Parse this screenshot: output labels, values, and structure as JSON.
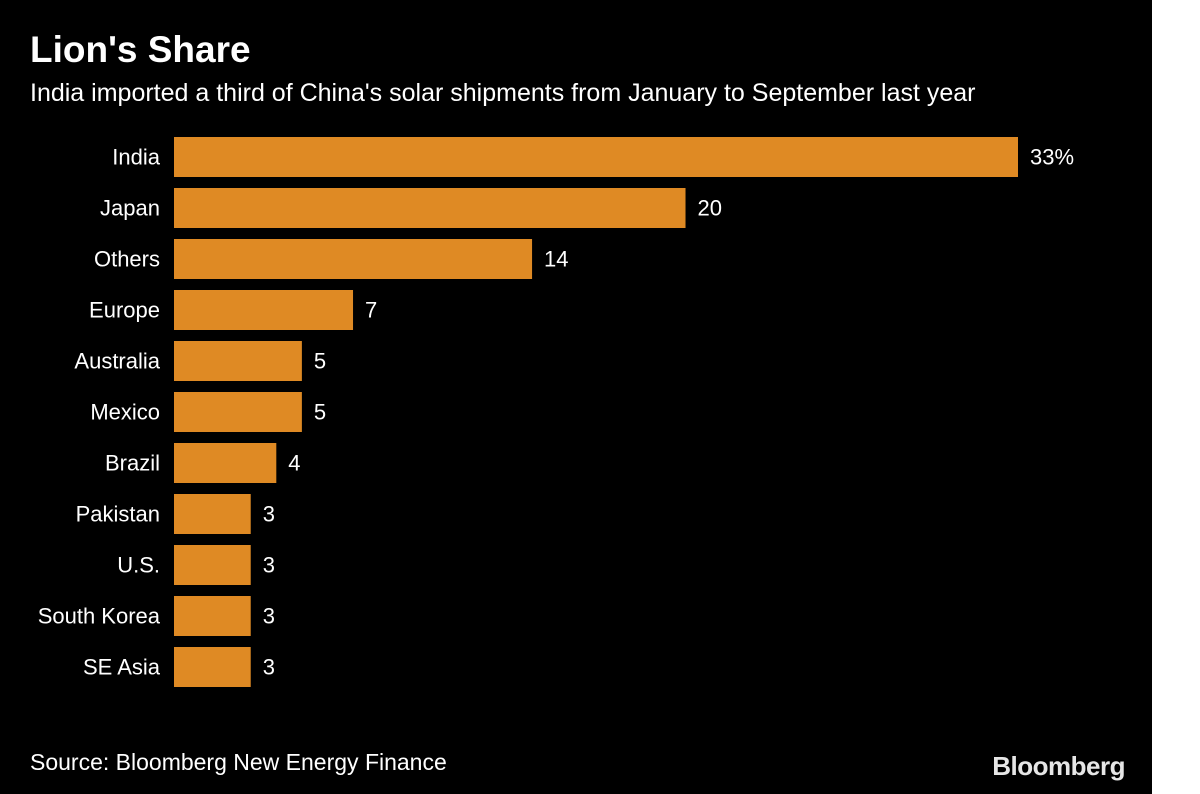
{
  "header": {
    "title": "Lion's Share",
    "subtitle": "India imported a third of China's solar shipments from January to September last year"
  },
  "footer": {
    "source": "Source: Bloomberg New Energy Finance",
    "brand": "Bloomberg"
  },
  "colors": {
    "background": "#000000",
    "bar": "#df8a24",
    "text": "#ffffff"
  },
  "chart_data": {
    "type": "bar",
    "orientation": "horizontal",
    "title": "Lion's Share",
    "subtitle": "India imported a third of China's solar shipments from January to September last year",
    "categories": [
      "India",
      "Japan",
      "Others",
      "Europe",
      "Australia",
      "Mexico",
      "Brazil",
      "Pakistan",
      "U.S.",
      "South Korea",
      "SE Asia"
    ],
    "values": [
      33,
      20,
      14,
      7,
      5,
      5,
      4,
      3,
      3,
      3,
      3
    ],
    "value_labels": [
      "33%",
      "20",
      "14",
      "7",
      "5",
      "5",
      "4",
      "3",
      "3",
      "3",
      "3"
    ],
    "unit": "%",
    "xlim": [
      0,
      33
    ],
    "grid": false,
    "legend": "none"
  }
}
